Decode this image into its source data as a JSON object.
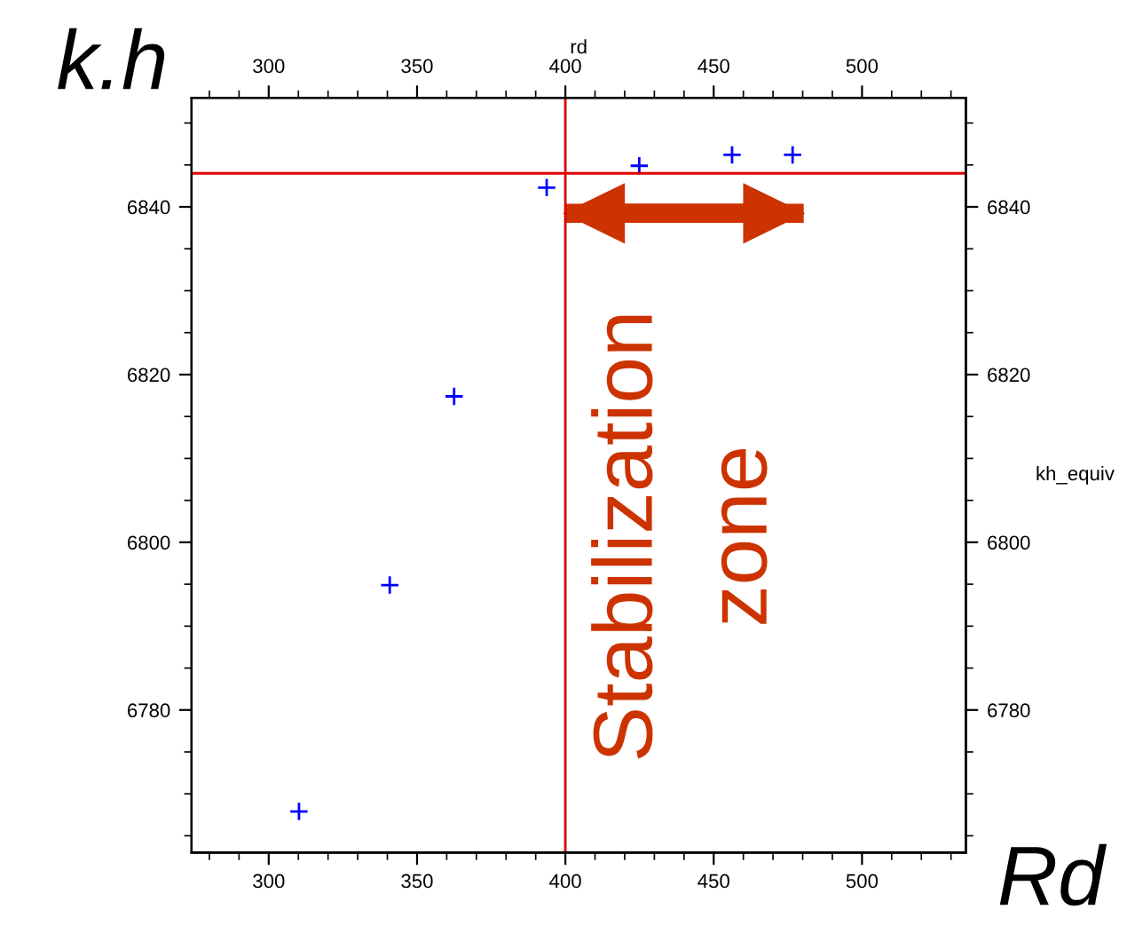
{
  "chart_data": {
    "type": "scatter",
    "x2label": "rd",
    "y2label": "kh_equiv",
    "annotations": [
      "k.h",
      "Rd",
      "Stabilization\nzone"
    ],
    "series": [
      {
        "color": "#0000ff",
        "x": [
          310.2,
          340.8,
          362.5,
          393.7,
          424.9,
          456.2,
          476.6
        ],
        "values": [
          6767.9,
          6794.9,
          6817.4,
          6842.3,
          6844.9,
          6846.2,
          6846.2
        ]
      }
    ],
    "marker": "cross",
    "xlim": [
      274,
      535
    ],
    "xticks": [
      300,
      350,
      400,
      450,
      500
    ],
    "x2lim": [
      274,
      535
    ],
    "x2ticks": [
      300,
      350,
      400,
      450,
      500
    ],
    "ylim": [
      6763,
      6853
    ],
    "yticks": [
      6780,
      6800,
      6820,
      6840
    ],
    "y2lim": [
      6763,
      6853
    ],
    "y2ticks": [
      6780,
      6800,
      6820,
      6840
    ],
    "ref_lines": [
      {
        "axis": "x",
        "value": 400,
        "color": "#e00000"
      },
      {
        "axis": "y",
        "value": 6844,
        "color": "#e00000"
      }
    ],
    "grid": false,
    "legend": false
  }
}
